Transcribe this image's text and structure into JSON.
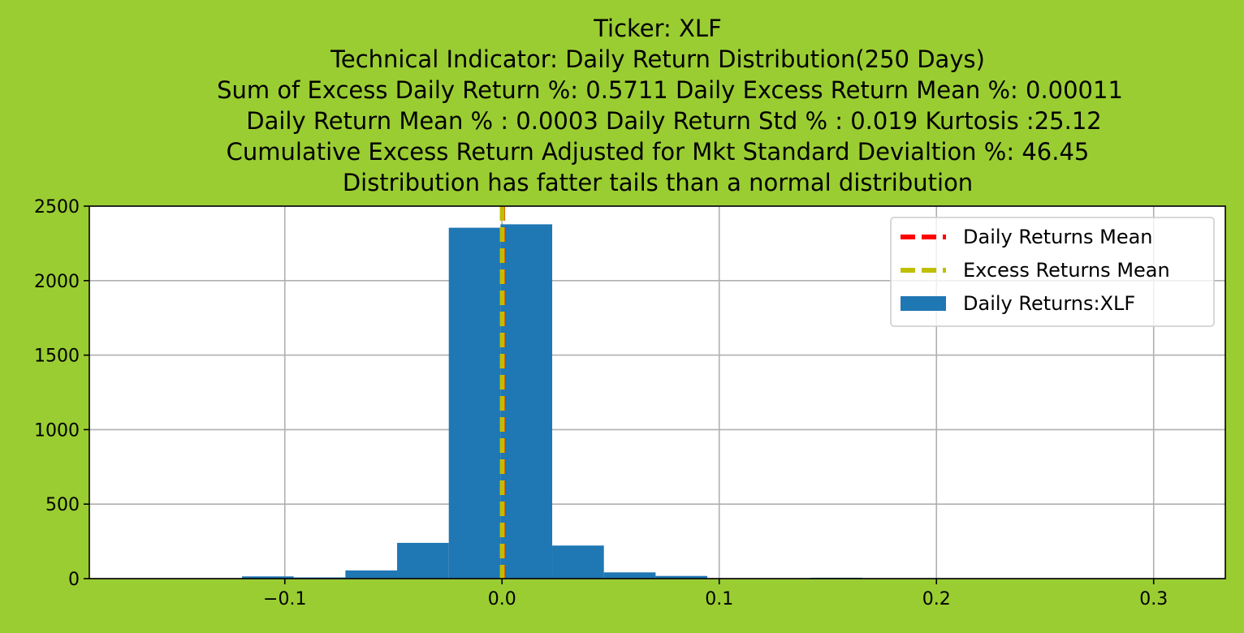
{
  "chart_data": {
    "type": "bar",
    "title_lines": [
      "Ticker: XLF",
      "Technical Indicator: Daily Return Distribution(250 Days)",
      "Sum of Excess Daily Return %: 0.5711   Daily Excess Return Mean %: 0.00011",
      "Daily Return Mean % : 0.0003    Daily Return Std % : 0.019  Kurtosis :25.12",
      "Cumulative Excess Return Adjusted for Mkt Standard Devialtion %: 46.45",
      "Distribution has fatter tails than a normal distribution"
    ],
    "xlabel": "",
    "ylabel": "",
    "xlim": [
      -0.19,
      0.333
    ],
    "ylim": [
      0,
      2500
    ],
    "x_ticks": [
      {
        "value": -0.1,
        "label": "−0.1"
      },
      {
        "value": 0.0,
        "label": "0.0"
      },
      {
        "value": 0.1,
        "label": "0.1"
      },
      {
        "value": 0.2,
        "label": "0.2"
      },
      {
        "value": 0.3,
        "label": "0.3"
      }
    ],
    "y_ticks": [
      {
        "value": 0,
        "label": "0"
      },
      {
        "value": 500,
        "label": "500"
      },
      {
        "value": 1000,
        "label": "1000"
      },
      {
        "value": 1500,
        "label": "1500"
      },
      {
        "value": 2000,
        "label": "2000"
      },
      {
        "value": 2500,
        "label": "2500"
      }
    ],
    "grid": true,
    "legend_position": "top-right",
    "legend": [
      {
        "label": "Daily Returns Mean",
        "kind": "dashed-line",
        "color": "#FF0000"
      },
      {
        "label": "Excess Returns Mean",
        "kind": "dashed-line",
        "color": "#BFBF00"
      },
      {
        "label": "Daily Returns:XLF",
        "kind": "patch",
        "color": "#1F77B4"
      }
    ],
    "histogram": {
      "bar_color": "#1F77B4",
      "bins": [
        {
          "x0": -0.1673,
          "x1": -0.1435,
          "count": 2
        },
        {
          "x0": -0.1435,
          "x1": -0.1197,
          "count": 2
        },
        {
          "x0": -0.1197,
          "x1": -0.0959,
          "count": 15
        },
        {
          "x0": -0.0959,
          "x1": -0.0721,
          "count": 8
        },
        {
          "x0": -0.0721,
          "x1": -0.0483,
          "count": 55
        },
        {
          "x0": -0.0483,
          "x1": -0.0245,
          "count": 240
        },
        {
          "x0": -0.0245,
          "x1": -0.0007,
          "count": 2355
        },
        {
          "x0": -0.0007,
          "x1": 0.0231,
          "count": 2378
        },
        {
          "x0": 0.0231,
          "x1": 0.0469,
          "count": 222
        },
        {
          "x0": 0.0469,
          "x1": 0.0707,
          "count": 42
        },
        {
          "x0": 0.0707,
          "x1": 0.0945,
          "count": 18
        },
        {
          "x0": 0.0945,
          "x1": 0.1183,
          "count": 2
        },
        {
          "x0": 0.1183,
          "x1": 0.1421,
          "count": 2
        },
        {
          "x0": 0.1421,
          "x1": 0.1659,
          "count": 6
        },
        {
          "x0": 0.1659,
          "x1": 0.1897,
          "count": 1
        },
        {
          "x0": 0.1897,
          "x1": 0.2135,
          "count": 1
        },
        {
          "x0": 0.2135,
          "x1": 0.2373,
          "count": 0
        },
        {
          "x0": 0.2373,
          "x1": 0.2611,
          "count": 0
        },
        {
          "x0": 0.2611,
          "x1": 0.2849,
          "count": 0
        },
        {
          "x0": 0.2849,
          "x1": 0.3087,
          "count": 1
        }
      ]
    },
    "vertical_lines": [
      {
        "name": "Daily Returns Mean",
        "x": 0.0003,
        "color": "#FF0000",
        "style": "dashed"
      },
      {
        "name": "Excess Returns Mean",
        "x": 0.00011,
        "color": "#BFBF00",
        "style": "dashed"
      }
    ]
  }
}
